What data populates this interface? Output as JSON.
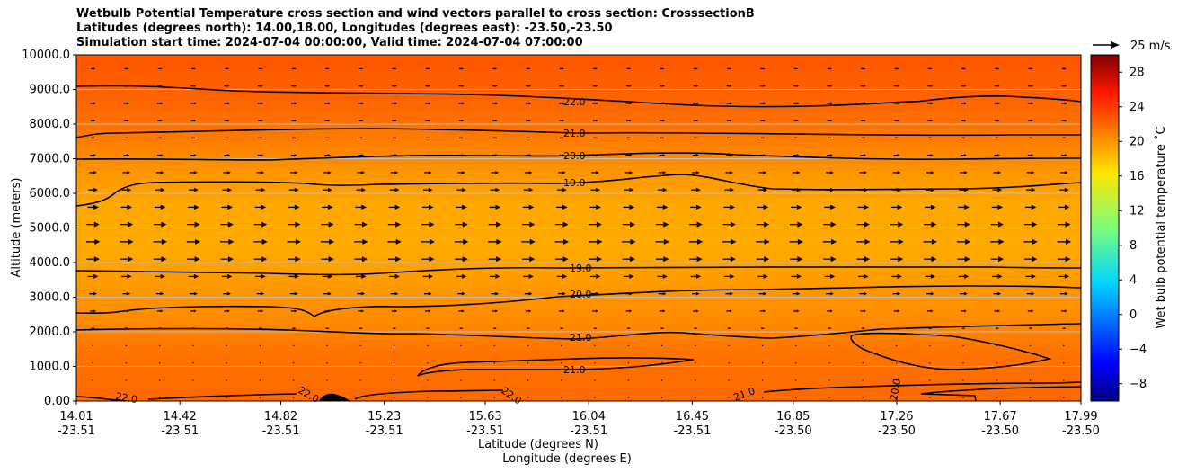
{
  "chart_data": {
    "type": "contour",
    "title_lines": [
      "Wetbulb Potential Temperature cross section and wind vectors parallel to cross section: CrosssectionB",
      "Latitudes (degrees north): 14.00,18.00, Longitudes (degrees east): -23.50,-23.50",
      "Simulation start time: 2024-07-04 00:00:00, Valid time: 2024-07-04 07:00:00"
    ],
    "ylabel": "Altitude (meters)",
    "xlabel_lat": "Latitude (degrees N)",
    "xlabel_lon": "Longitude (degrees E)",
    "ylim": [
      0,
      10000
    ],
    "y_ticks": [
      "0.00",
      "1000.0",
      "2000.0",
      "3000.0",
      "4000.0",
      "5000.0",
      "6000.0",
      "7000.0",
      "8000.0",
      "9000.0",
      "10000.0"
    ],
    "x_ticks": [
      {
        "lat": "14.01",
        "lon": "-23.51"
      },
      {
        "lat": "14.42",
        "lon": "-23.51"
      },
      {
        "lat": "14.82",
        "lon": "-23.51"
      },
      {
        "lat": "15.23",
        "lon": "-23.51"
      },
      {
        "lat": "15.63",
        "lon": "-23.51"
      },
      {
        "lat": "16.04",
        "lon": "-23.51"
      },
      {
        "lat": "16.45",
        "lon": "-23.51"
      },
      {
        "lat": "16.85",
        "lon": "-23.50"
      },
      {
        "lat": "17.26",
        "lon": "-23.50"
      },
      {
        "lat": "17.67",
        "lon": "-23.50"
      },
      {
        "lat": "17.99",
        "lon": "-23.50"
      }
    ],
    "grid": true,
    "colorbar": {
      "label": "Wet bulb potential temperature ˚C",
      "ticks": [
        "−8",
        "−4",
        "0",
        "4",
        "8",
        "12",
        "16",
        "20",
        "24",
        "28"
      ],
      "range": [
        -10,
        30
      ],
      "colormap": "jet"
    },
    "quiver_key": "25 m/s",
    "contour_labels": [
      "22.0",
      "21.0",
      "20.0",
      "19.0",
      "19.0",
      "20.0",
      "21.0",
      "21.0",
      "22.0",
      "22.0",
      "22.0",
      "21.0",
      "20.0"
    ],
    "wind_levels": [
      {
        "altitude": 9600,
        "speed": 5
      },
      {
        "altitude": 9100,
        "speed": 6
      },
      {
        "altitude": 8600,
        "speed": 7
      },
      {
        "altitude": 8100,
        "speed": 6
      },
      {
        "altitude": 7600,
        "speed": 5
      },
      {
        "altitude": 7100,
        "speed": 7
      },
      {
        "altitude": 6600,
        "speed": 9
      },
      {
        "altitude": 6100,
        "speed": 11
      },
      {
        "altitude": 5600,
        "speed": 13
      },
      {
        "altitude": 5100,
        "speed": 15
      },
      {
        "altitude": 4600,
        "speed": 16
      },
      {
        "altitude": 4100,
        "speed": 15
      },
      {
        "altitude": 3600,
        "speed": 12
      },
      {
        "altitude": 3100,
        "speed": 9
      },
      {
        "altitude": 2600,
        "speed": 7
      },
      {
        "altitude": 2100,
        "speed": 4
      },
      {
        "altitude": 1600,
        "speed": 1
      },
      {
        "altitude": 1100,
        "speed": 1
      },
      {
        "altitude": 600,
        "speed": 1
      },
      {
        "altitude": 100,
        "speed": 1
      }
    ]
  },
  "colors": {
    "fill_top": "#ff5a00",
    "fill_upper": "#ff7a00",
    "fill_mid": "#ffaa00",
    "fill_low": "#ff8c00",
    "fill_bottom": "#ff6a00",
    "grid": "#bdbdbd",
    "contour": "#000000"
  }
}
